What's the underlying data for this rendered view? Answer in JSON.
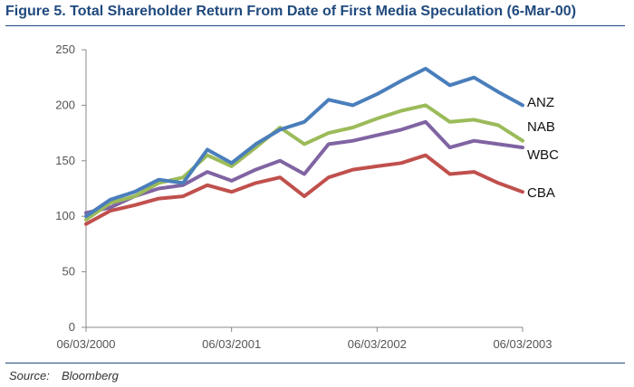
{
  "figure_title": "Figure 5.  Total Shareholder Return From Date of First Media Speculation (6-Mar-00)",
  "source": {
    "label": "Source:",
    "value": "Bloomberg"
  },
  "chart_data": {
    "type": "line",
    "title": "Figure 5.  Total Shareholder Return From Date of First Media Speculation (6-Mar-00)",
    "xlabel": "",
    "ylabel": "",
    "ylim": [
      0,
      250
    ],
    "yticks": [
      0,
      50,
      100,
      150,
      200,
      250
    ],
    "xticks": [
      "06/03/2000",
      "06/03/2001",
      "06/03/2002",
      "06/03/2003"
    ],
    "grid": false,
    "legend": "series labels at line ends (right)",
    "x": [
      "2000-03",
      "2000-05",
      "2000-07",
      "2000-09",
      "2000-11",
      "2001-01",
      "2001-03",
      "2001-05",
      "2001-07",
      "2001-09",
      "2001-11",
      "2002-01",
      "2002-03",
      "2002-05",
      "2002-07",
      "2002-09",
      "2002-11",
      "2003-01",
      "2003-03"
    ],
    "series": [
      {
        "name": "ANZ",
        "color": "#4a7ebb",
        "values": [
          100,
          115,
          122,
          133,
          130,
          160,
          148,
          165,
          178,
          185,
          205,
          200,
          210,
          222,
          233,
          218,
          225,
          212,
          200
        ]
      },
      {
        "name": "NAB",
        "color": "#9bbb59",
        "values": [
          97,
          112,
          118,
          130,
          135,
          155,
          145,
          162,
          180,
          165,
          175,
          180,
          188,
          195,
          200,
          185,
          187,
          182,
          168
        ]
      },
      {
        "name": "WBC",
        "color": "#8064a2",
        "values": [
          103,
          108,
          118,
          125,
          128,
          140,
          132,
          142,
          150,
          138,
          165,
          168,
          173,
          178,
          185,
          162,
          168,
          165,
          162
        ]
      },
      {
        "name": "CBA",
        "color": "#c0504d",
        "values": [
          93,
          105,
          110,
          116,
          118,
          128,
          122,
          130,
          135,
          118,
          135,
          142,
          145,
          148,
          155,
          138,
          140,
          130,
          122
        ]
      }
    ]
  }
}
